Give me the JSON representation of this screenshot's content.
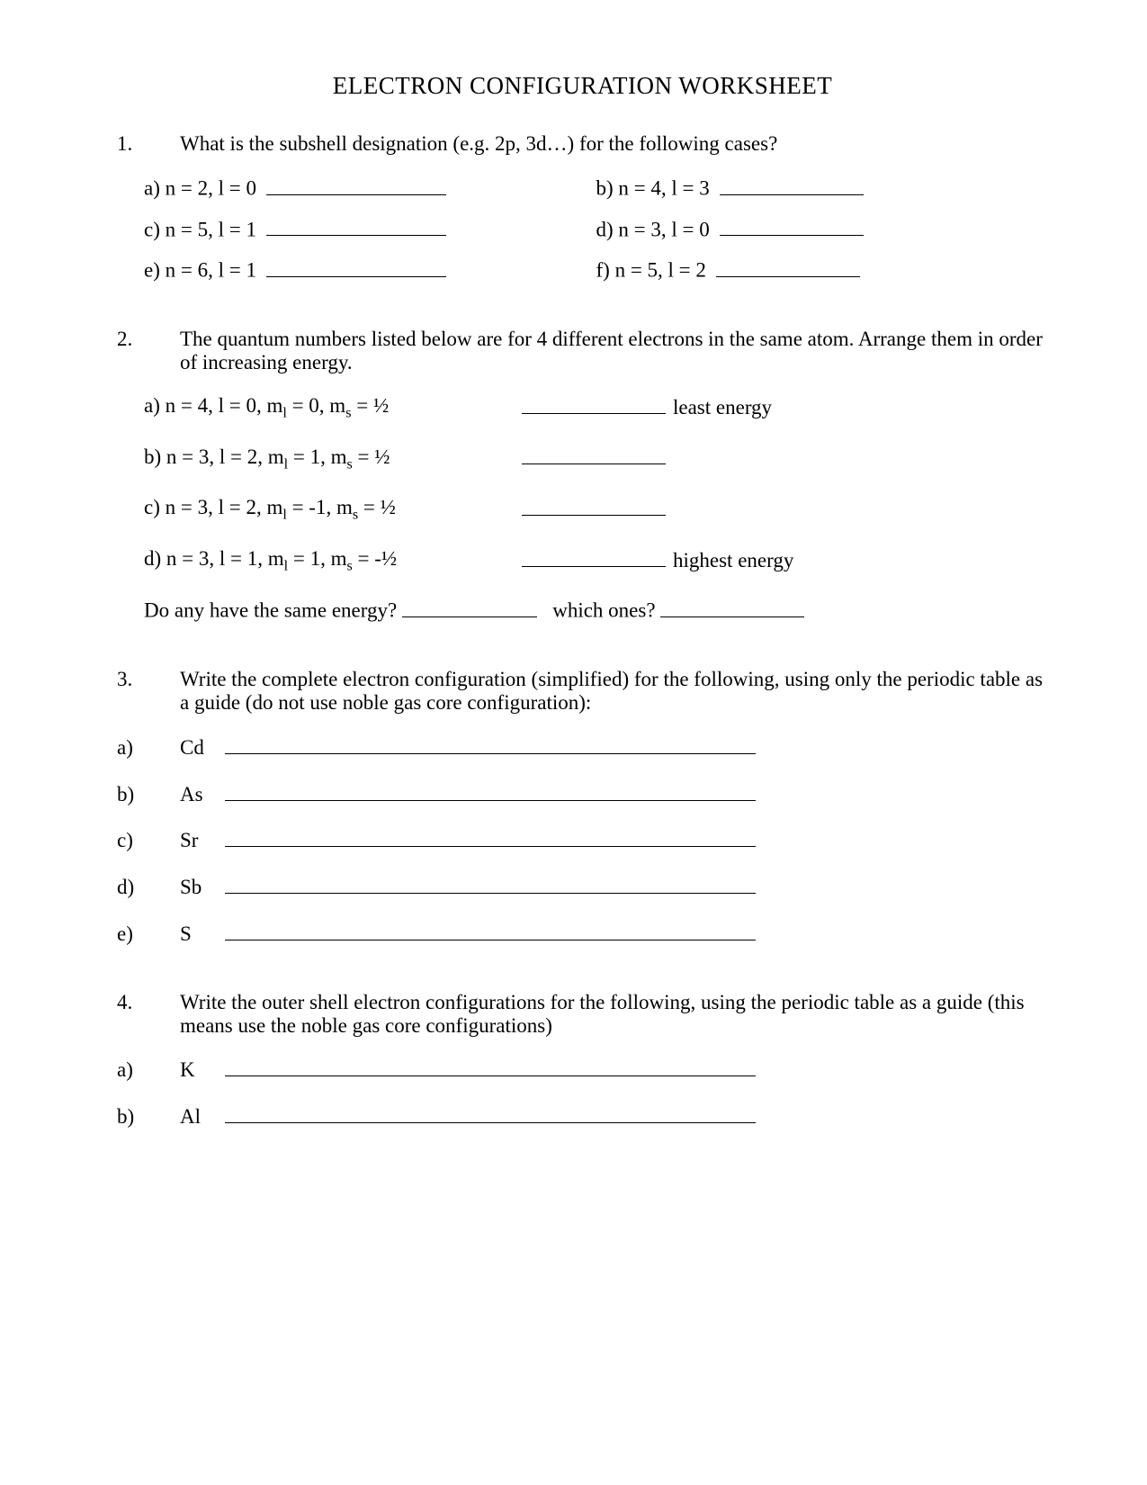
{
  "title": "ELECTRON CONFIGURATION WORKSHEET",
  "q1": {
    "num": "1.",
    "text": "What is the subshell designation (e.g. 2p, 3d…) for the following cases?",
    "items": {
      "a": "a)  n = 2, l = 0",
      "b": "b)  n = 4, l = 3",
      "c": "c)  n = 5, l = 1",
      "d": "d)  n = 3, l = 0",
      "e": "e)  n = 6, l = 1",
      "f": "f)  n = 5, l = 2"
    }
  },
  "q2": {
    "num": "2.",
    "text": "The quantum numbers listed below are for 4 different electrons in the same atom.  Arrange them in order of increasing energy.",
    "rows": {
      "a": {
        "label": "a)  n = 4, l = 0, m",
        "sub1": "l",
        "mid": " = 0, m",
        "sub2": "s",
        "end": " = ½",
        "note": "least energy"
      },
      "b": {
        "label": "b)  n = 3, l = 2, m",
        "sub1": "l",
        "mid": " = 1, m",
        "sub2": "s",
        "end": " = ½",
        "note": ""
      },
      "c": {
        "label": "c)  n = 3, l = 2, m",
        "sub1": "l",
        "mid": " = -1, m",
        "sub2": "s",
        "end": " = ½",
        "note": ""
      },
      "d": {
        "label": "d)  n = 3, l = 1, m",
        "sub1": "l",
        "mid": " = 1, m",
        "sub2": "s",
        "end": " = -½",
        "note": "highest energy"
      }
    },
    "follow1": "Do any have the same energy?",
    "follow2": "which ones?"
  },
  "q3": {
    "num": "3.",
    "text": "Write the complete electron configuration (simplified) for the following, using only the periodic table as a guide (do not use noble gas core configuration):",
    "rows": {
      "a": {
        "lbl": "a)",
        "elt": "Cd"
      },
      "b": {
        "lbl": "b)",
        "elt": "As"
      },
      "c": {
        "lbl": "c)",
        "elt": "Sr"
      },
      "d": {
        "lbl": "d)",
        "elt": "Sb"
      },
      "e": {
        "lbl": "e)",
        "elt": "S"
      }
    }
  },
  "q4": {
    "num": "4.",
    "text": "Write the outer shell electron configurations for the following, using the periodic table as a guide (this means use the noble gas core configurations)",
    "rows": {
      "a": {
        "lbl": "a)",
        "elt": "K"
      },
      "b": {
        "lbl": "b)",
        "elt": "Al"
      }
    }
  }
}
